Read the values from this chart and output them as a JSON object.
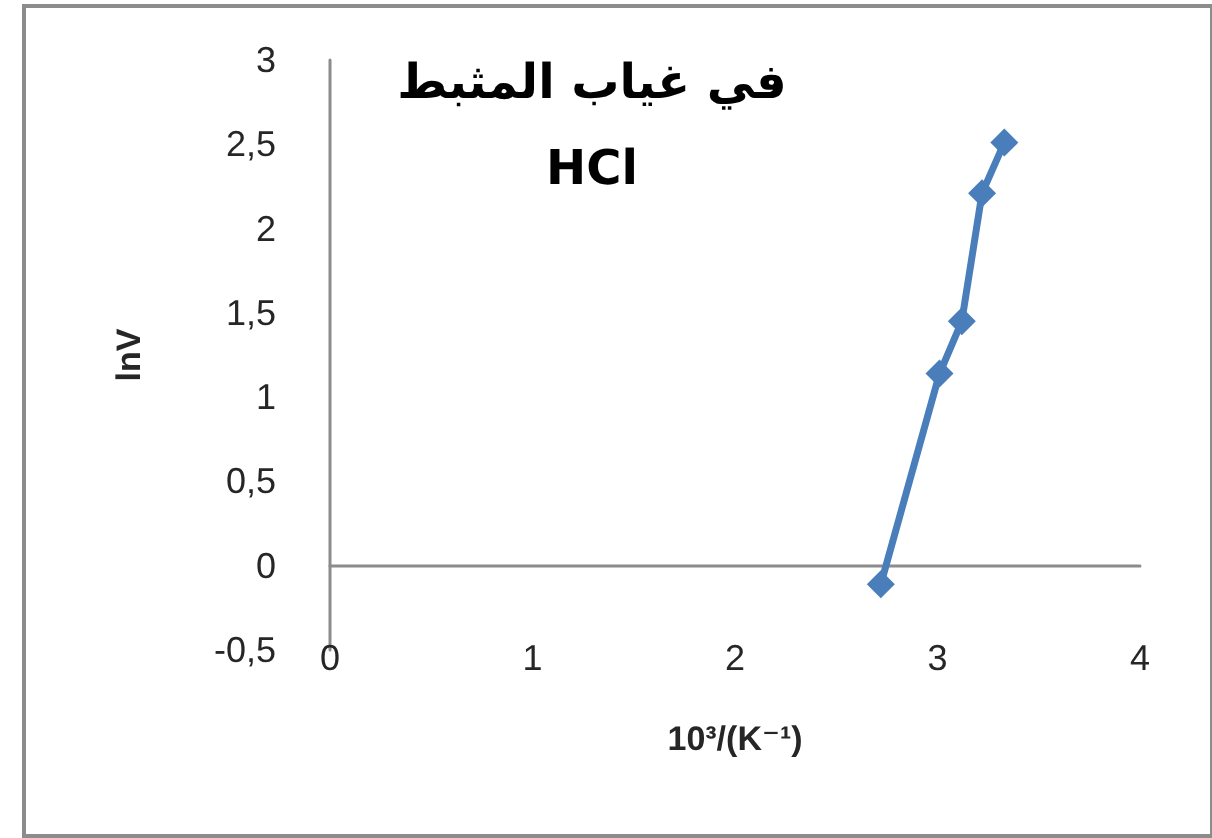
{
  "chart_data": {
    "type": "line",
    "title": "في غياب المثبط HCl",
    "xlabel": "10³/(K⁻¹)",
    "ylabel": "lnV",
    "x": [
      2.72,
      3.01,
      3.12,
      3.22,
      3.33
    ],
    "series": [
      {
        "color": "#4a7ebb",
        "values": [
          -0.11,
          1.14,
          1.45,
          2.21,
          2.51
        ]
      }
    ],
    "xlim": [
      0,
      4
    ],
    "xticks": [
      0,
      1,
      2,
      3,
      4
    ],
    "ylim": [
      -0.5,
      3
    ],
    "yticks": [
      {
        "value": -0.5,
        "label": "-0,5"
      },
      0,
      {
        "value": 0.5,
        "label": "0,5"
      },
      1,
      {
        "value": 1.5,
        "label": "1,5"
      },
      2,
      {
        "value": 2.5,
        "label": "2,5"
      },
      3
    ],
    "grid": false,
    "marker": "diamond",
    "line_style": "solid"
  }
}
